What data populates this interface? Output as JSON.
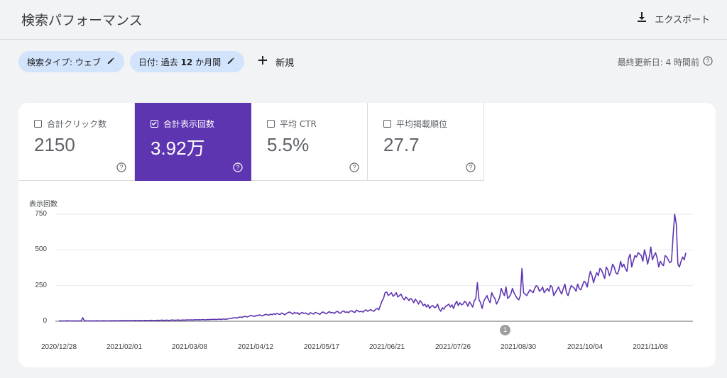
{
  "header": {
    "title": "検索パフォーマンス",
    "export_label": "エクスポート"
  },
  "filters": {
    "search_type": {
      "prefix": "検索タイプ: ",
      "value": "ウェブ"
    },
    "date": {
      "prefix": "日付: 過去 ",
      "bold": "12",
      "suffix": " か月間"
    },
    "new_label": "新規"
  },
  "last_updated": "最終更新日: 4 時間前",
  "metrics": [
    {
      "label": "合計クリック数",
      "value": "2150",
      "checked": false
    },
    {
      "label": "合計表示回数",
      "value": "3.92万",
      "checked": true
    },
    {
      "label": "平均 CTR",
      "value": "5.5%",
      "checked": false
    },
    {
      "label": "平均掲載順位",
      "value": "27.7",
      "checked": false
    }
  ],
  "colors": {
    "accent": "#5e35b1",
    "chip": "#d2e3fc",
    "line": "#5e35b1"
  },
  "annotation_marker": "1",
  "chart_data": {
    "type": "line",
    "ylabel": "表示回数",
    "ylim": [
      0,
      750
    ],
    "yticks": [
      "0",
      "250",
      "500",
      "750"
    ],
    "xticks": [
      "2020/12/28",
      "2021/02/01",
      "2021/03/08",
      "2021/04/12",
      "2021/05/17",
      "2021/06/21",
      "2021/07/26",
      "2021/08/30",
      "2021/10/04",
      "2021/11/08"
    ],
    "series": [
      {
        "x_start": "2020/12/28",
        "values": [
          2,
          3,
          2,
          2,
          2,
          4,
          3,
          2,
          2,
          3,
          2,
          2,
          3,
          2,
          4,
          25,
          4,
          3,
          2,
          3,
          3,
          3,
          2,
          3,
          4,
          2,
          3,
          3,
          4,
          3,
          3,
          3,
          3,
          4,
          3,
          4,
          4,
          3,
          4,
          4,
          5,
          5,
          4,
          5,
          4,
          5,
          5,
          4,
          6,
          5,
          5,
          6,
          5,
          4,
          6,
          6,
          5,
          6,
          7,
          5,
          6,
          6,
          7,
          6,
          7,
          8,
          6,
          7,
          8,
          6,
          7,
          9,
          8,
          7,
          8,
          9,
          7,
          8,
          9,
          8,
          9,
          10,
          9,
          10,
          9,
          10,
          11,
          10,
          11,
          10,
          12,
          11,
          10,
          12,
          11,
          13,
          12,
          14,
          13,
          12,
          15,
          14,
          13,
          16,
          15,
          14,
          17,
          18,
          20,
          22,
          25,
          24,
          23,
          28,
          30,
          27,
          32,
          35,
          30,
          33,
          38,
          40,
          36,
          34,
          42,
          38,
          45,
          40,
          38,
          44,
          48,
          45,
          42,
          50,
          46,
          52,
          48,
          55,
          50,
          47,
          58,
          52,
          45,
          55,
          60,
          65,
          58,
          50,
          62,
          55,
          60,
          48,
          56,
          62,
          54,
          58,
          52,
          48,
          60,
          55,
          50,
          62,
          58,
          54,
          48,
          60,
          65,
          58,
          52,
          60,
          68,
          58,
          62,
          55,
          64,
          70,
          60,
          56,
          68,
          72,
          62,
          66,
          60,
          70,
          74,
          66,
          62,
          78,
          72,
          66,
          70,
          64,
          74,
          80,
          70,
          76,
          82,
          74,
          70,
          84,
          90,
          80,
          110,
          140,
          160,
          200,
          205,
          180,
          190,
          200,
          175,
          185,
          200,
          170,
          180,
          190,
          165,
          150,
          170,
          160,
          145,
          160,
          150,
          130,
          155,
          140,
          120,
          145,
          130,
          110,
          120,
          100,
          115,
          90,
          105,
          110,
          95,
          100,
          120,
          85,
          70,
          95,
          85,
          105,
          110,
          120,
          100,
          115,
          90,
          120,
          140,
          110,
          130,
          115,
          120,
          140,
          130,
          105,
          135,
          120,
          100,
          140,
          160,
          270,
          150,
          130,
          90,
          140,
          160,
          180,
          150,
          130,
          200,
          175,
          160,
          120,
          140,
          170,
          230,
          200,
          180,
          240,
          160,
          170,
          190,
          230,
          200,
          180,
          160,
          150,
          180,
          370,
          200,
          190,
          180,
          200,
          220,
          210,
          200,
          230,
          250,
          240,
          210,
          220,
          240,
          200,
          215,
          230,
          210,
          250,
          240,
          180,
          200,
          220,
          240,
          210,
          190,
          230,
          260,
          200,
          180,
          220,
          250,
          240,
          230,
          210,
          260,
          230,
          220,
          250,
          280,
          270,
          240,
          300,
          350,
          320,
          270,
          310,
          340,
          320,
          370,
          360,
          330,
          300,
          380,
          360,
          320,
          350,
          400,
          380,
          340,
          330,
          360,
          420,
          380,
          400,
          370,
          350,
          440,
          470,
          380,
          420,
          460,
          450,
          480,
          470,
          460,
          420,
          500,
          460,
          400,
          450,
          520,
          430,
          460,
          480,
          440,
          380,
          420,
          400,
          390,
          460,
          450,
          430,
          410,
          420,
          600,
          750,
          680,
          400,
          380,
          420,
          450,
          430,
          480
        ]
      }
    ]
  }
}
